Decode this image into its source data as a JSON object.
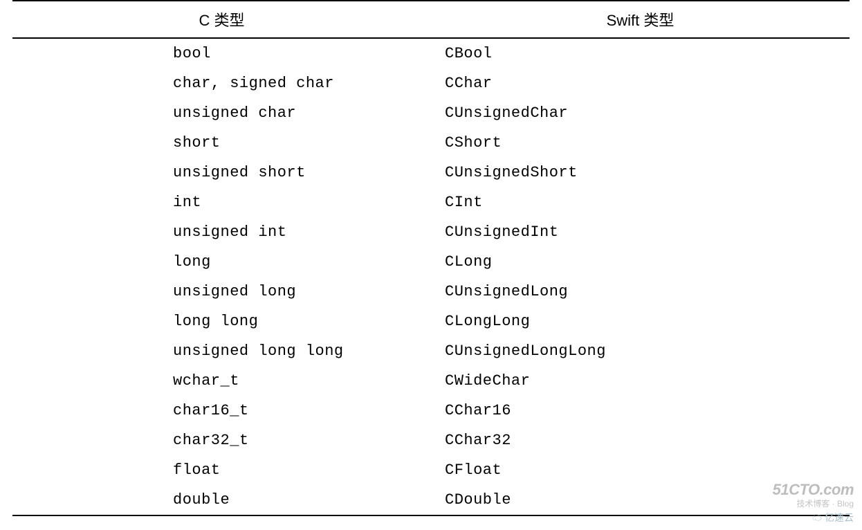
{
  "table": {
    "header_c": "C 类型",
    "header_swift": "Swift 类型",
    "rows": [
      {
        "c": "bool",
        "swift": "CBool"
      },
      {
        "c": "char, signed char",
        "swift": "CChar"
      },
      {
        "c": "unsigned char",
        "swift": "CUnsignedChar"
      },
      {
        "c": "short",
        "swift": "CShort"
      },
      {
        "c": "unsigned short",
        "swift": "CUnsignedShort"
      },
      {
        "c": "int",
        "swift": "CInt"
      },
      {
        "c": "unsigned int",
        "swift": "CUnsignedInt"
      },
      {
        "c": "long",
        "swift": "CLong"
      },
      {
        "c": "unsigned long",
        "swift": "CUnsignedLong"
      },
      {
        "c": "long long",
        "swift": "CLongLong"
      },
      {
        "c": "unsigned long long",
        "swift": "CUnsignedLongLong"
      },
      {
        "c": "wchar_t",
        "swift": "CWideChar"
      },
      {
        "c": "char16_t",
        "swift": "CChar16"
      },
      {
        "c": "char32_t",
        "swift": "CChar32"
      },
      {
        "c": "float",
        "swift": "CFloat"
      },
      {
        "c": "double",
        "swift": "CDouble"
      }
    ]
  },
  "watermark": {
    "main": "51CTO.com",
    "sub": "技术博客 · Blog",
    "cloud": "☁ 亿速云"
  },
  "styling": {
    "font_size_header": 22,
    "font_size_cell": 22,
    "border_color": "#000000",
    "border_width": 2,
    "row_padding_v": 9,
    "col_c_padding_left": 232,
    "background": "#ffffff",
    "watermark_color": "#bdbdbd"
  }
}
